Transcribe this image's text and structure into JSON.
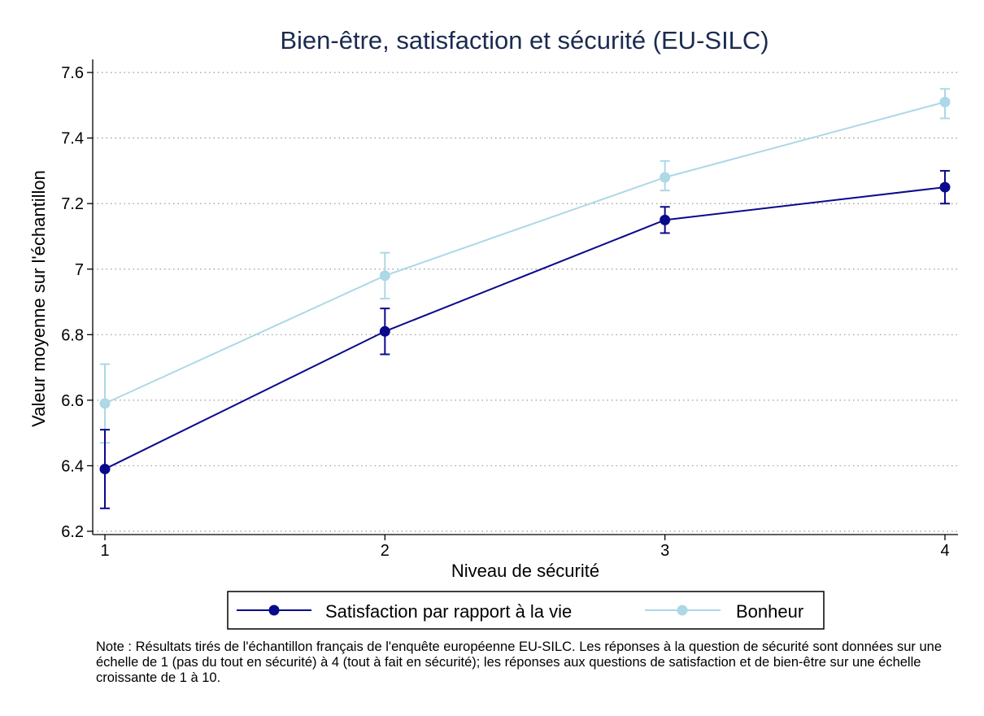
{
  "chart_data": {
    "type": "line",
    "title": "Bien-être, satisfaction et sécurité (EU-SILC)",
    "xlabel": "Niveau de sécurité",
    "ylabel": "Valeur moyenne sur l'échantillon",
    "x": [
      1,
      2,
      3,
      4
    ],
    "x_ticks": [
      "1",
      "2",
      "3",
      "4"
    ],
    "y_ticks": [
      "6.2",
      "6.4",
      "6.6",
      "6.8",
      "7",
      "7.2",
      "7.4",
      "7.6"
    ],
    "ylim": [
      6.19,
      7.64
    ],
    "xlim": [
      1,
      4
    ],
    "grid": "horizontal dotted",
    "series": [
      {
        "name": "Satisfaction par rapport à la vie",
        "color": "#0a0a8c",
        "values": [
          6.39,
          6.81,
          7.15,
          7.25
        ],
        "ci_low": [
          6.27,
          6.74,
          7.11,
          7.2
        ],
        "ci_high": [
          6.51,
          6.88,
          7.19,
          7.3
        ]
      },
      {
        "name": "Bonheur",
        "color": "#add8e6",
        "values": [
          6.59,
          6.98,
          7.28,
          7.51
        ],
        "ci_low": [
          6.47,
          6.91,
          7.24,
          7.46
        ],
        "ci_high": [
          6.71,
          7.05,
          7.33,
          7.55
        ]
      }
    ],
    "legend_position": "bottom"
  },
  "note": "Note : Résultats tirés de l'échantillon français de l'enquête européenne EU-SILC. Les réponses à la question de sécurité sont données sur une échelle de 1 (pas du tout en sécurité) à 4 (tout à fait en sécurité); les réponses aux questions de satisfaction et de bien-être sur une échelle croissante de 1 à 10."
}
